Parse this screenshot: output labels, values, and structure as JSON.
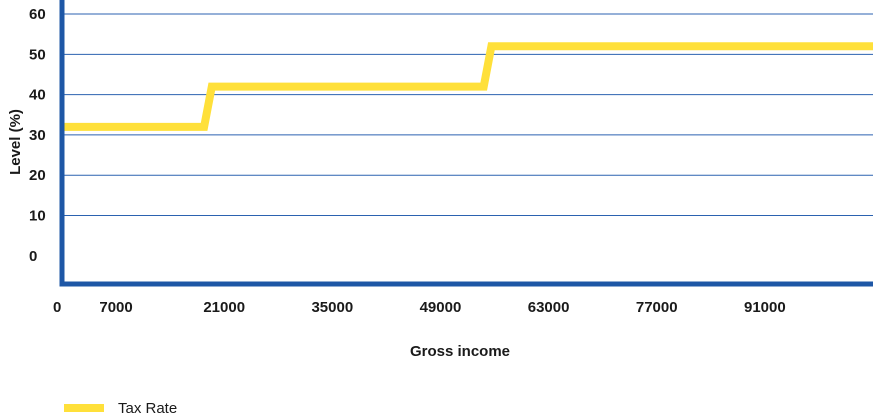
{
  "chart_data": {
    "type": "line",
    "xlabel": "Gross income",
    "ylabel": "Level (%)",
    "xlim": [
      0,
      105000
    ],
    "ylim": [
      -7,
      62
    ],
    "x_ticks": [
      0,
      7000,
      21000,
      35000,
      49000,
      63000,
      77000,
      91000
    ],
    "y_ticks": [
      0,
      10,
      20,
      30,
      40,
      50,
      60
    ],
    "grid": "horizontal",
    "legend_position": "bottom-left",
    "series": [
      {
        "name": "Tax Rate",
        "color": "#FFE03A",
        "x": [
          0,
          18400,
          19400,
          54600,
          55600,
          105000
        ],
        "y": [
          32,
          32,
          42,
          42,
          52,
          52
        ]
      }
    ]
  },
  "colors": {
    "axis": "#1E57A6",
    "grid": "#2B62B0"
  }
}
